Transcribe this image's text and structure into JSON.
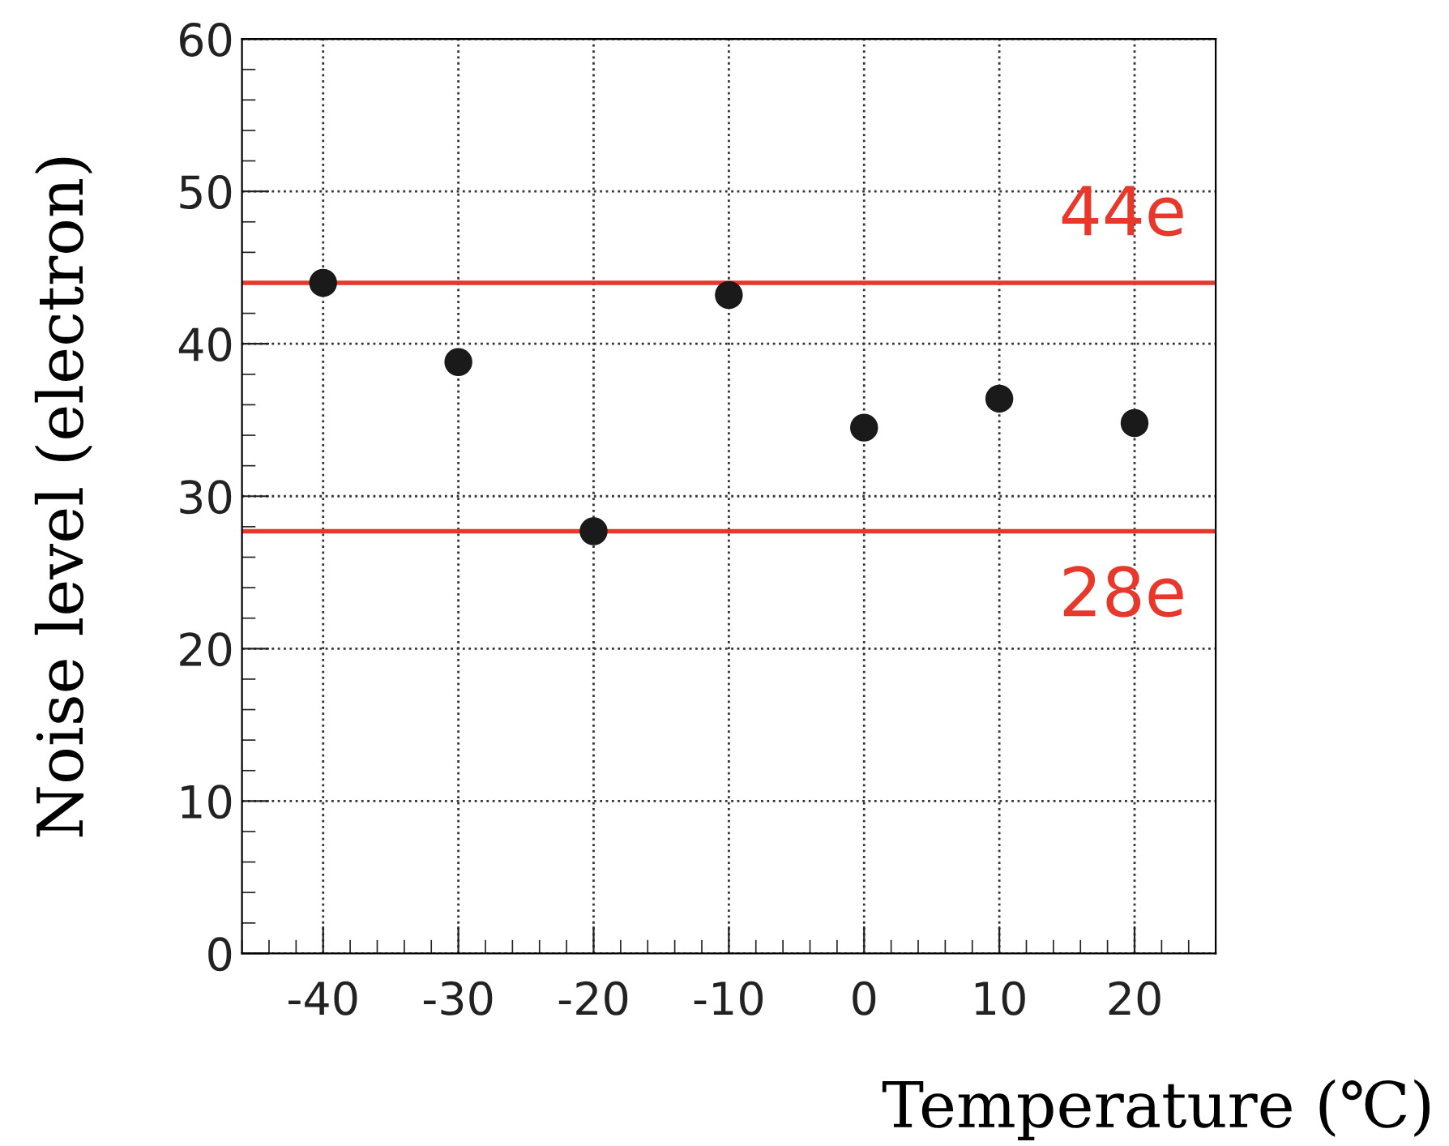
{
  "chart_data": {
    "type": "scatter",
    "xlabel": "Temperature (℃)",
    "ylabel": "Noise level (electron)",
    "x": [
      -40,
      -30,
      -20,
      -10,
      0,
      10,
      20
    ],
    "series": [
      {
        "color": "#1a1a1a",
        "values": [
          44.0,
          38.8,
          27.7,
          43.2,
          34.5,
          36.4,
          34.8
        ]
      }
    ],
    "xlim": [
      -46,
      26
    ],
    "ylim": [
      0,
      60
    ],
    "xticks": [
      -40,
      -30,
      -20,
      -10,
      0,
      10,
      20
    ],
    "yticks": [
      0,
      10,
      20,
      30,
      40,
      50,
      60
    ],
    "ref_lines": [
      {
        "axis": "y",
        "value": 44,
        "label": "44e",
        "color": "#e8382c"
      },
      {
        "axis": "y",
        "value": 27.7,
        "label": "28e",
        "color": "#e8382c"
      }
    ],
    "grid": true,
    "marker": "circle"
  }
}
